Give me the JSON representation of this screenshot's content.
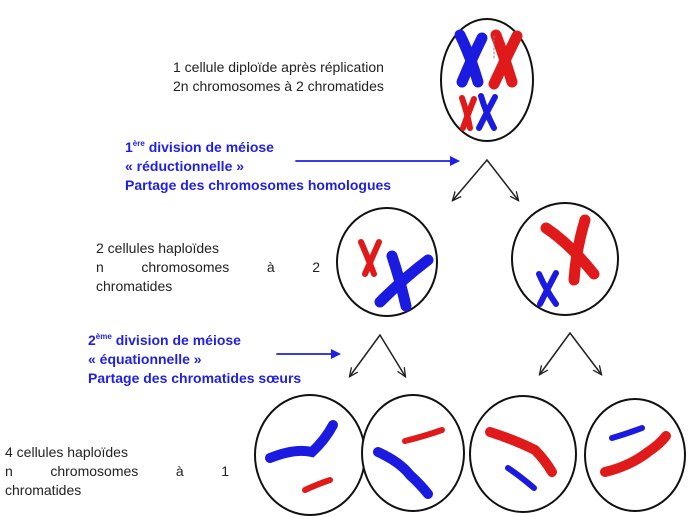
{
  "step1": {
    "line1": "1 cellule diploïde après réplication",
    "line2": "2n chromosomes à 2 chromatides"
  },
  "division1": {
    "num": "1",
    "sup": "ère",
    "rest": " division de méiose",
    "line2": "« réductionnelle »",
    "line3": "Partage des chromosomes homologues"
  },
  "step2": {
    "line1": "2 cellules haploïdes",
    "line2": "n chromosomes à 2",
    "line3": "chromatides"
  },
  "division2": {
    "num": "2",
    "sup": "ème",
    "rest": " division de méiose",
    "line2": "« équationnelle »",
    "line3": "Partage des chromatides sœurs"
  },
  "step3": {
    "line1": "4 cellules haploïdes",
    "line2": "n chromosomes à 1",
    "line3": "chromatides"
  },
  "colors": {
    "maternal": "#1a1ae0",
    "paternal": "#e01a1a",
    "label": "#1f1fe6"
  }
}
